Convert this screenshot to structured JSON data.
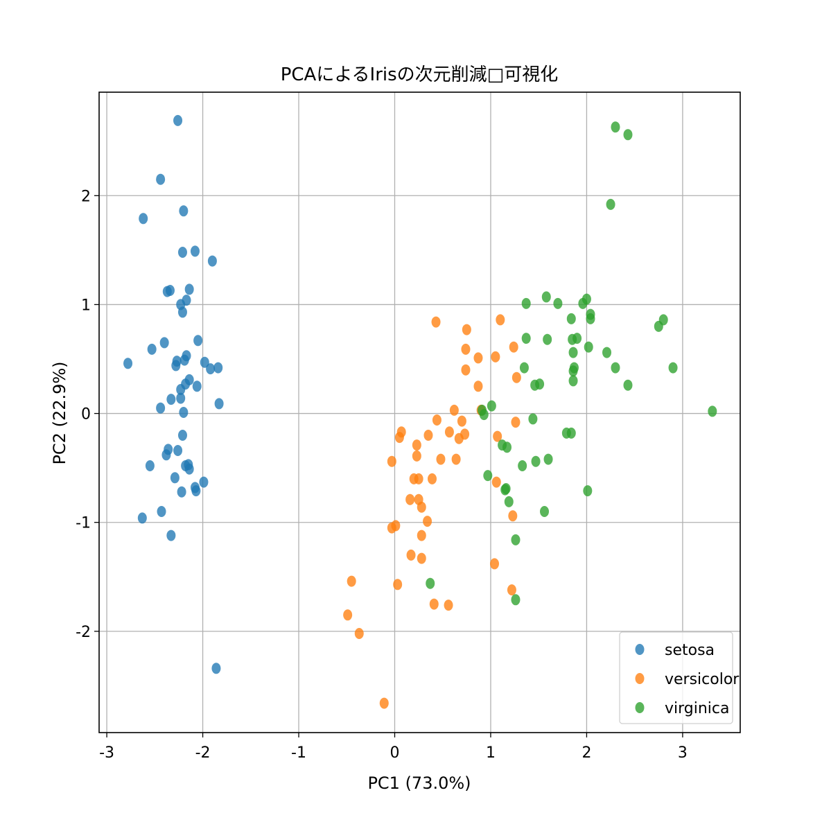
{
  "chart_data": {
    "type": "scatter",
    "title": "PCAによるIrisの次元削減□可視化",
    "xlabel": "PC1 (73.0%)",
    "ylabel": "PC2 (22.9%)",
    "xlim": [
      -3.08,
      3.6
    ],
    "ylim": [
      -2.93,
      2.95
    ],
    "xticks": [
      -3,
      -2,
      -1,
      0,
      1,
      2,
      3
    ],
    "xtick_labels": [
      "-3",
      "-2",
      "-1",
      "0",
      "1",
      "2",
      "3"
    ],
    "yticks": [
      -2,
      -1,
      0,
      1,
      2
    ],
    "ytick_labels": [
      "-2",
      "-1",
      "0",
      "1",
      "2"
    ],
    "grid": true,
    "legend_position": "lower-right",
    "series": [
      {
        "name": "setosa",
        "color": "#1f77b4",
        "points": [
          [
            -2.26,
            2.69
          ],
          [
            -2.44,
            2.15
          ],
          [
            -2.62,
            1.79
          ],
          [
            -2.2,
            1.86
          ],
          [
            -2.21,
            1.48
          ],
          [
            -2.08,
            1.49
          ],
          [
            -1.9,
            1.4
          ],
          [
            -2.14,
            1.14
          ],
          [
            -2.37,
            1.12
          ],
          [
            -2.34,
            1.13
          ],
          [
            -2.17,
            1.04
          ],
          [
            -2.23,
            1.0
          ],
          [
            -2.21,
            0.93
          ],
          [
            -2.05,
            0.67
          ],
          [
            -2.4,
            0.65
          ],
          [
            -2.53,
            0.59
          ],
          [
            -2.78,
            0.46
          ],
          [
            -2.17,
            0.53
          ],
          [
            -2.27,
            0.48
          ],
          [
            -2.19,
            0.49
          ],
          [
            -2.28,
            0.44
          ],
          [
            -1.98,
            0.47
          ],
          [
            -1.92,
            0.41
          ],
          [
            -1.84,
            0.42
          ],
          [
            -2.14,
            0.31
          ],
          [
            -2.18,
            0.27
          ],
          [
            -2.06,
            0.25
          ],
          [
            -2.23,
            0.22
          ],
          [
            -2.23,
            0.14
          ],
          [
            -2.33,
            0.13
          ],
          [
            -1.83,
            0.09
          ],
          [
            -2.44,
            0.05
          ],
          [
            -2.2,
            0.01
          ],
          [
            -2.21,
            -0.2
          ],
          [
            -2.36,
            -0.33
          ],
          [
            -2.26,
            -0.34
          ],
          [
            -2.38,
            -0.38
          ],
          [
            -2.15,
            -0.47
          ],
          [
            -2.18,
            -0.48
          ],
          [
            -2.55,
            -0.48
          ],
          [
            -2.14,
            -0.51
          ],
          [
            -2.29,
            -0.59
          ],
          [
            -1.99,
            -0.63
          ],
          [
            -2.08,
            -0.68
          ],
          [
            -2.07,
            -0.71
          ],
          [
            -2.22,
            -0.72
          ],
          [
            -2.43,
            -0.9
          ],
          [
            -2.63,
            -0.96
          ],
          [
            -2.33,
            -1.12
          ],
          [
            -1.86,
            -2.34
          ]
        ]
      },
      {
        "name": "versicolor",
        "color": "#ff7f0e",
        "points": [
          [
            0.43,
            0.84
          ],
          [
            1.1,
            0.86
          ],
          [
            0.75,
            0.77
          ],
          [
            0.74,
            0.59
          ],
          [
            1.24,
            0.61
          ],
          [
            0.87,
            0.51
          ],
          [
            1.05,
            0.52
          ],
          [
            0.74,
            0.4
          ],
          [
            0.87,
            0.25
          ],
          [
            1.27,
            0.33
          ],
          [
            0.62,
            0.03
          ],
          [
            0.9,
            0.03
          ],
          [
            0.44,
            -0.06
          ],
          [
            0.7,
            -0.07
          ],
          [
            0.07,
            -0.17
          ],
          [
            0.05,
            -0.22
          ],
          [
            0.35,
            -0.2
          ],
          [
            0.57,
            -0.17
          ],
          [
            0.73,
            -0.19
          ],
          [
            0.67,
            -0.23
          ],
          [
            1.07,
            -0.21
          ],
          [
            0.23,
            -0.29
          ],
          [
            1.26,
            -0.08
          ],
          [
            0.23,
            -0.39
          ],
          [
            -0.03,
            -0.44
          ],
          [
            0.48,
            -0.42
          ],
          [
            0.64,
            -0.42
          ],
          [
            0.25,
            -0.6
          ],
          [
            0.39,
            -0.6
          ],
          [
            1.06,
            -0.63
          ],
          [
            0.16,
            -0.79
          ],
          [
            0.25,
            -0.79
          ],
          [
            0.28,
            -0.86
          ],
          [
            1.23,
            -0.94
          ],
          [
            0.34,
            -0.99
          ],
          [
            -0.03,
            -1.05
          ],
          [
            0.01,
            -1.03
          ],
          [
            0.28,
            -1.12
          ],
          [
            0.17,
            -1.3
          ],
          [
            0.28,
            -1.33
          ],
          [
            1.04,
            -1.38
          ],
          [
            -0.45,
            -1.54
          ],
          [
            0.03,
            -1.57
          ],
          [
            1.22,
            -1.62
          ],
          [
            0.41,
            -1.75
          ],
          [
            0.56,
            -1.76
          ],
          [
            -0.49,
            -1.85
          ],
          [
            -0.37,
            -2.02
          ],
          [
            -0.11,
            -2.66
          ],
          [
            0.2,
            -0.6
          ]
        ]
      },
      {
        "name": "virginica",
        "color": "#2ca02c",
        "points": [
          [
            2.3,
            2.63
          ],
          [
            2.43,
            2.56
          ],
          [
            2.25,
            1.92
          ],
          [
            1.58,
            1.07
          ],
          [
            1.7,
            1.01
          ],
          [
            1.37,
            1.01
          ],
          [
            1.96,
            1.01
          ],
          [
            2.0,
            1.05
          ],
          [
            2.04,
            0.91
          ],
          [
            2.04,
            0.87
          ],
          [
            1.84,
            0.87
          ],
          [
            2.75,
            0.8
          ],
          [
            2.8,
            0.86
          ],
          [
            1.37,
            0.69
          ],
          [
            1.59,
            0.68
          ],
          [
            1.85,
            0.68
          ],
          [
            1.9,
            0.69
          ],
          [
            2.02,
            0.61
          ],
          [
            2.21,
            0.56
          ],
          [
            1.86,
            0.56
          ],
          [
            1.35,
            0.42
          ],
          [
            1.87,
            0.42
          ],
          [
            1.86,
            0.39
          ],
          [
            2.3,
            0.42
          ],
          [
            2.9,
            0.42
          ],
          [
            1.86,
            0.3
          ],
          [
            1.51,
            0.27
          ],
          [
            1.46,
            0.26
          ],
          [
            2.43,
            0.26
          ],
          [
            1.01,
            0.07
          ],
          [
            0.91,
            0.03
          ],
          [
            0.93,
            -0.01
          ],
          [
            3.31,
            0.02
          ],
          [
            1.44,
            -0.05
          ],
          [
            1.79,
            -0.18
          ],
          [
            1.84,
            -0.18
          ],
          [
            1.12,
            -0.29
          ],
          [
            1.17,
            -0.31
          ],
          [
            1.6,
            -0.42
          ],
          [
            1.47,
            -0.44
          ],
          [
            1.33,
            -0.48
          ],
          [
            0.97,
            -0.57
          ],
          [
            1.15,
            -0.7
          ],
          [
            2.01,
            -0.71
          ],
          [
            1.19,
            -0.81
          ],
          [
            1.56,
            -0.9
          ],
          [
            1.26,
            -1.16
          ],
          [
            0.37,
            -1.56
          ],
          [
            1.26,
            -1.71
          ],
          [
            1.16,
            -0.69
          ]
        ]
      }
    ]
  }
}
